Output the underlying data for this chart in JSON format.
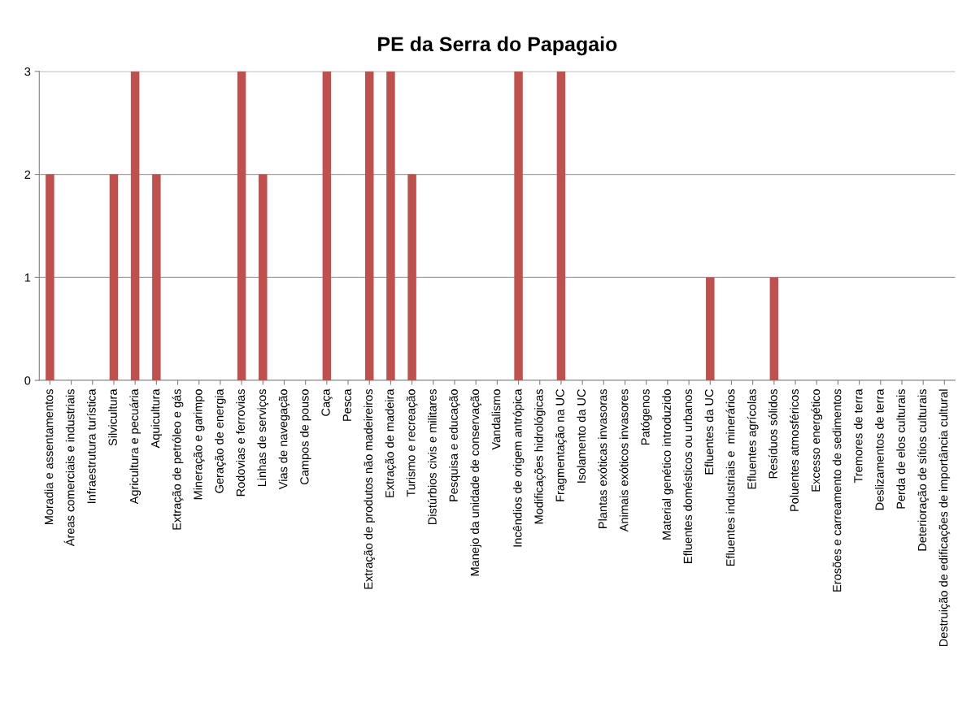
{
  "chart_data": {
    "type": "bar",
    "title": "PE da Serra do Papagaio",
    "categories": [
      "Moradia e assentamentos",
      "Áreas comerciais e industriais",
      "Infraestrutura turística",
      "Silvicultura",
      "Agricultura e pecuária",
      "Aquicultura",
      "Extração de petróleo e gás",
      "Mineração e garimpo",
      "Geração de energia",
      "Rodovias e ferrovias",
      "Linhas de serviços",
      "Vias de navegação",
      "Campos de pouso",
      "Caça",
      "Pesca",
      "Extração de produtos não madeireiros",
      "Extração de madeira",
      "Turismo e recreação",
      "Distúrbios civis e militares",
      "Pesquisa e educação",
      "Manejo da unidade de conservação",
      "Vandalismo",
      "Incêndios de origem antrópica",
      "Modificações hidrológicas",
      "Fragmentação na UC",
      "Isolamento da UC",
      "Plantas exóticas invasoras",
      "Animais exóticos invasores",
      "Patógenos",
      "Material genético introduzido",
      "Efluentes domésticos ou urbanos",
      "Efluentes da UC",
      "Efluentes industriais e  minerários",
      "Efluentes agrícolas",
      "Resíduos sólidos",
      "Poluentes atmosféricos",
      "Excesso energético",
      "Erosões e carreamento de sedimentos",
      "Tremores de terra",
      "Deslizamentos de terra",
      "Perda de elos culturais",
      "Deterioração de sítios culturais",
      "Destruição de edificações de importância cultural"
    ],
    "values": [
      2,
      0,
      0,
      2,
      3,
      2,
      0,
      0,
      0,
      3,
      2,
      0,
      0,
      3,
      0,
      3,
      3,
      2,
      0,
      0,
      0,
      0,
      3,
      0,
      3,
      0,
      0,
      0,
      0,
      0,
      0,
      1,
      0,
      0,
      1,
      0,
      0,
      0,
      0,
      0,
      0,
      0,
      0
    ],
    "color": "#c0504d",
    "ylim": [
      0,
      3
    ],
    "yticks": [
      0,
      1,
      2,
      3
    ],
    "grid": "y",
    "legend": false
  }
}
